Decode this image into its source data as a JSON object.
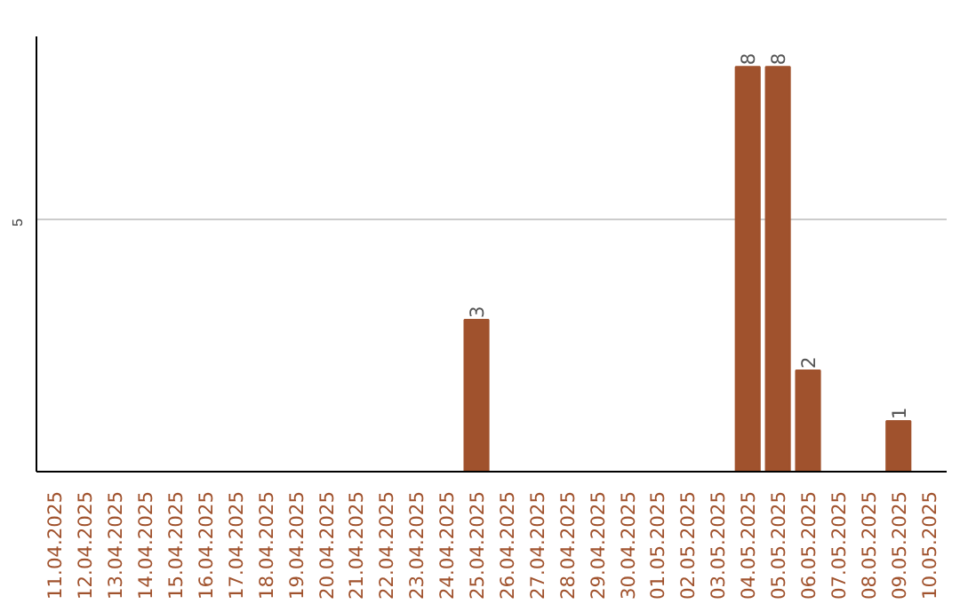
{
  "chart_data": {
    "type": "bar",
    "categories": [
      "11.04.2025",
      "12.04.2025",
      "13.04.2025",
      "14.04.2025",
      "15.04.2025",
      "16.04.2025",
      "17.04.2025",
      "18.04.2025",
      "19.04.2025",
      "20.04.2025",
      "21.04.2025",
      "22.04.2025",
      "23.04.2025",
      "24.04.2025",
      "25.04.2025",
      "26.04.2025",
      "27.04.2025",
      "28.04.2025",
      "29.04.2025",
      "30.04.2025",
      "01.05.2025",
      "02.05.2025",
      "03.05.2025",
      "04.05.2025",
      "05.05.2025",
      "06.05.2025",
      "07.05.2025",
      "08.05.2025",
      "09.05.2025",
      "10.05.2025"
    ],
    "values": [
      null,
      null,
      null,
      null,
      null,
      null,
      null,
      null,
      null,
      null,
      null,
      null,
      null,
      null,
      3,
      null,
      null,
      null,
      null,
      null,
      null,
      null,
      null,
      8,
      8,
      2,
      null,
      null,
      1,
      null
    ],
    "value_labels": [
      null,
      null,
      null,
      null,
      null,
      null,
      null,
      null,
      null,
      null,
      null,
      null,
      null,
      null,
      "3",
      null,
      null,
      null,
      null,
      null,
      null,
      null,
      null,
      "8",
      "8",
      "2",
      null,
      null,
      "1",
      null
    ],
    "color": "#a0522d",
    "ylim": [
      0,
      8.6
    ],
    "yticks": [
      5
    ],
    "grid": "y"
  }
}
